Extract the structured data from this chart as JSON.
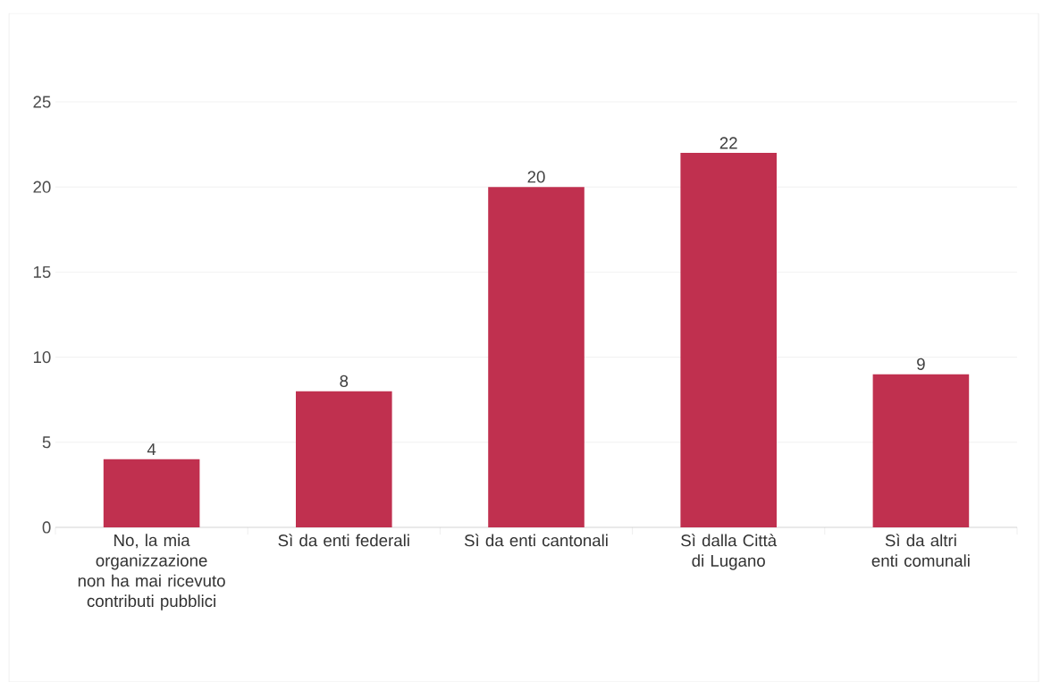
{
  "chart_data": {
    "type": "bar",
    "categories": [
      "No, la mia organizzazione non ha mai ricevuto contributi pubblici",
      "Sì da enti federali",
      "Sì da enti cantonali",
      "Sì dalla Città di Lugano",
      "Sì da altri enti comunali"
    ],
    "values": [
      4,
      8,
      20,
      22,
      9
    ],
    "color": "#c0304f",
    "ylim": [
      0,
      25
    ],
    "yticks": [
      0,
      5,
      10,
      15,
      20,
      25
    ],
    "grid": "y",
    "data_labels": true
  }
}
